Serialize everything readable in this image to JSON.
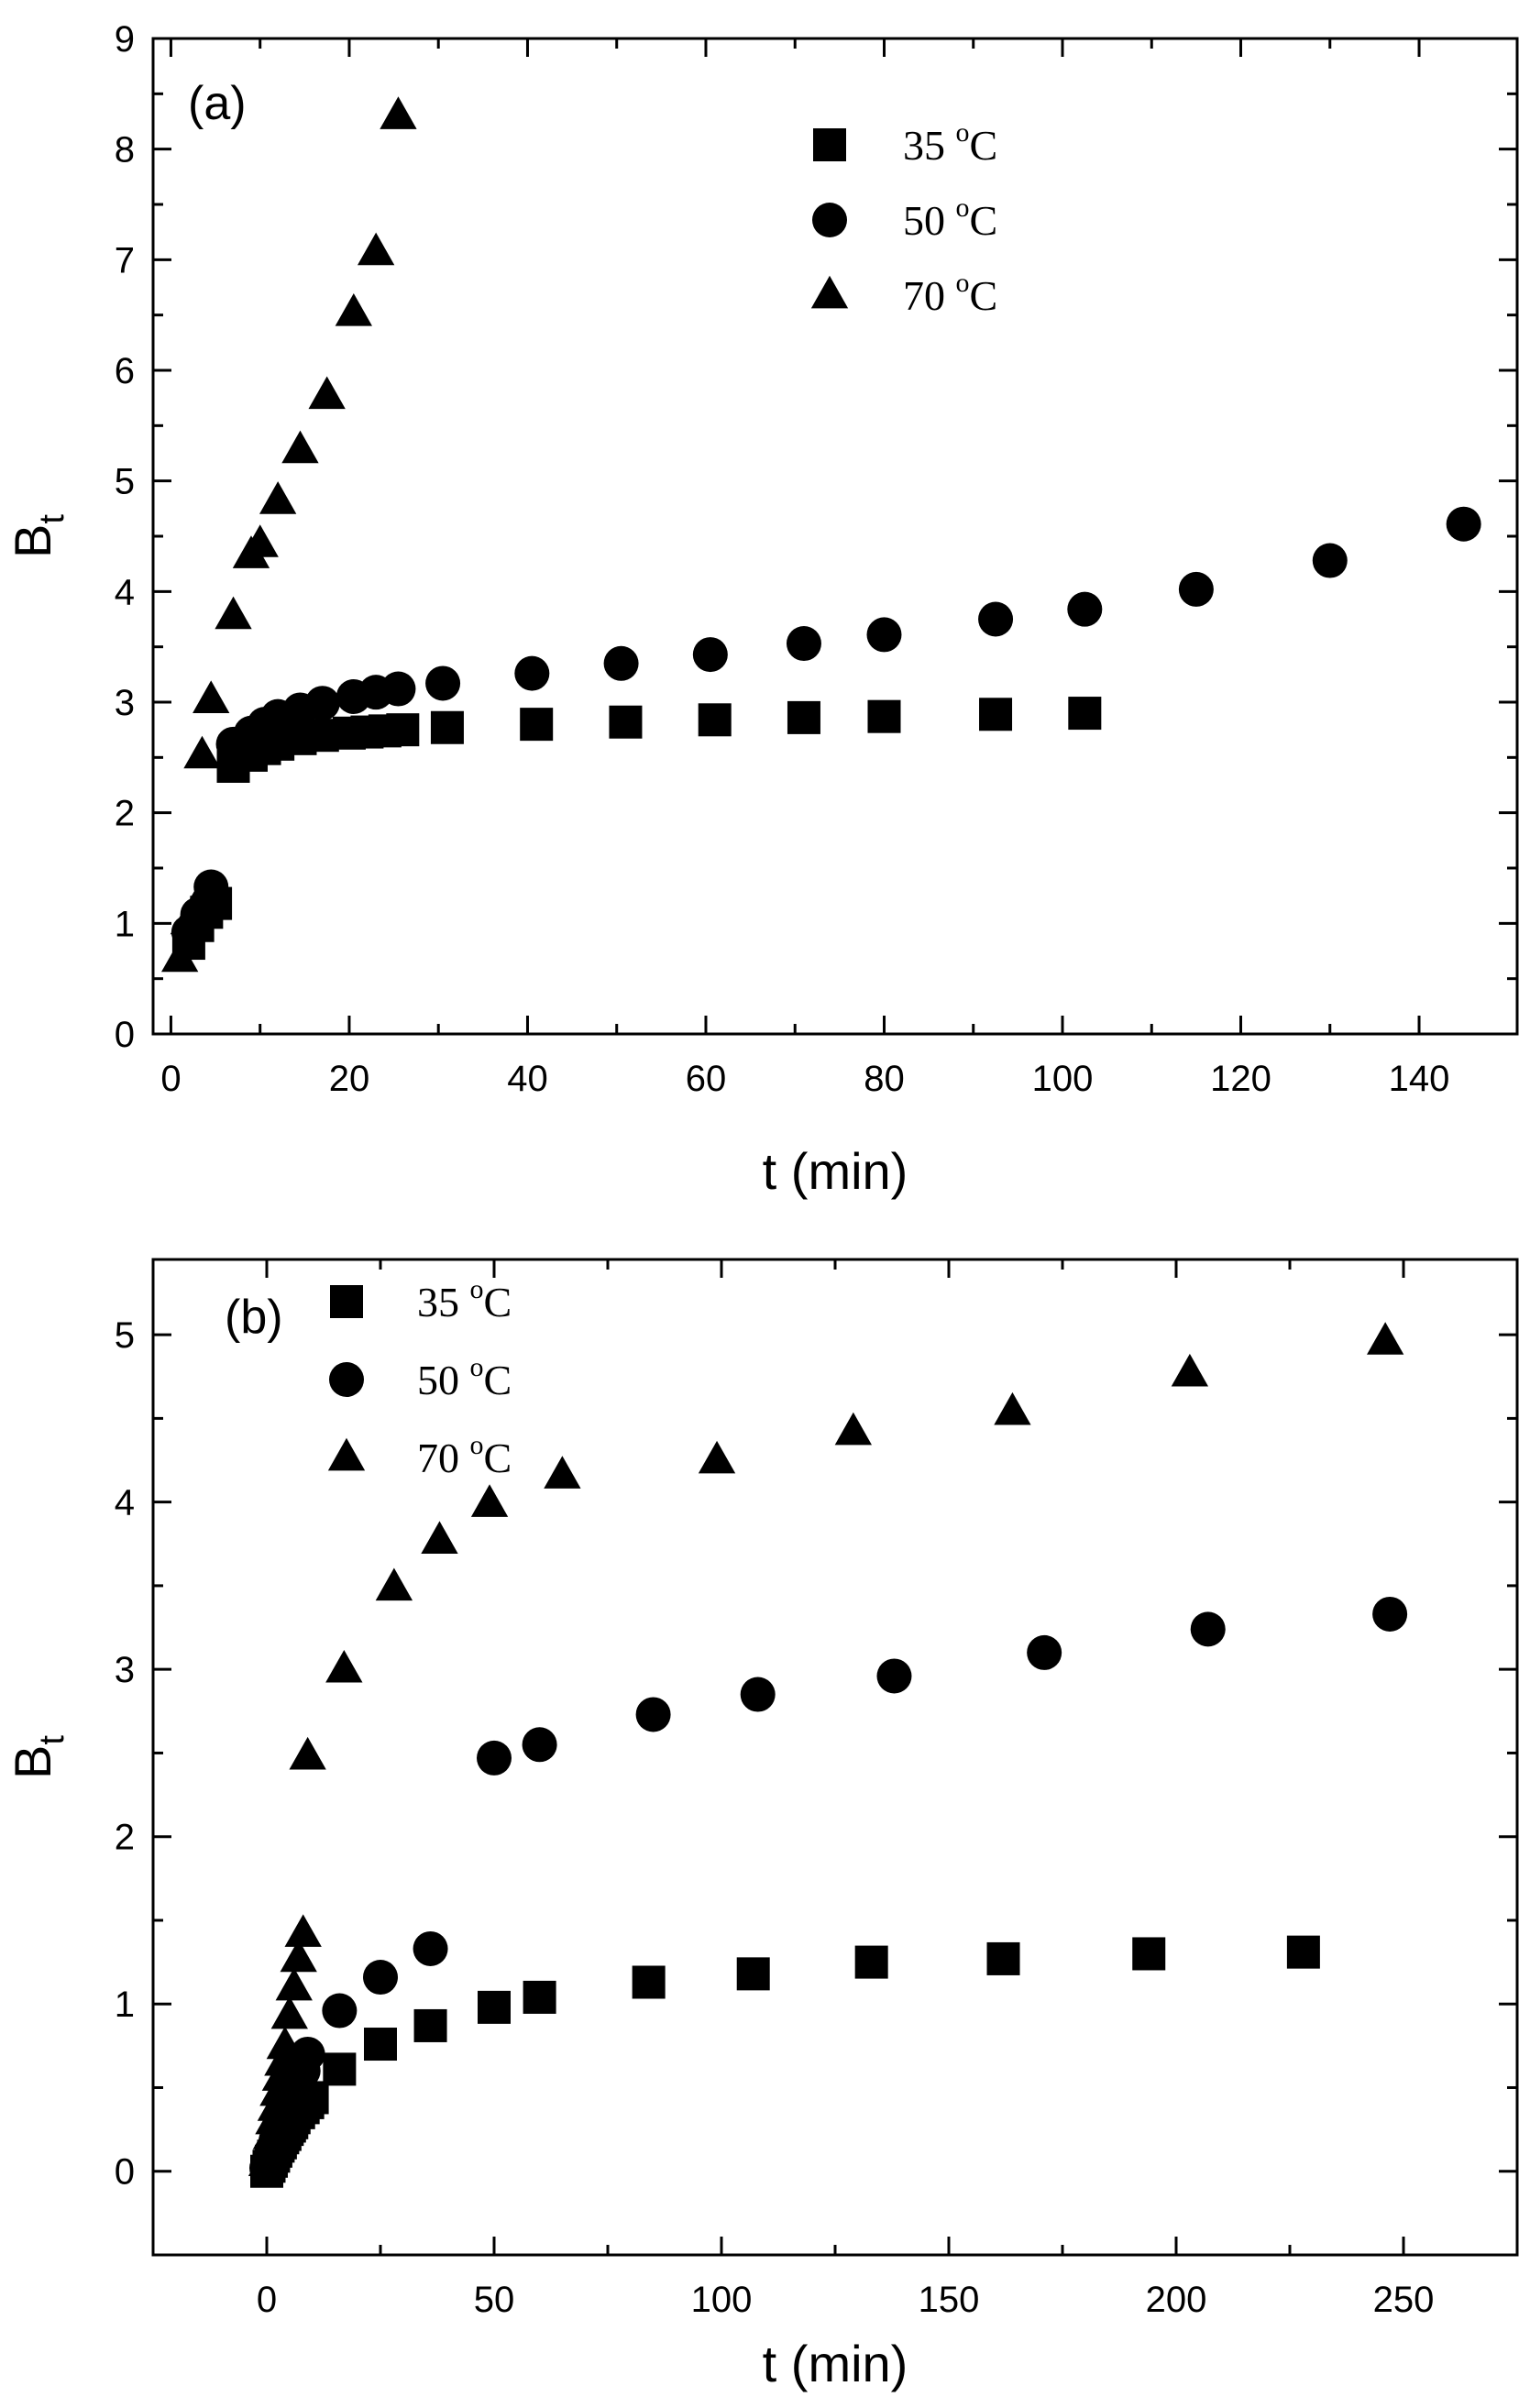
{
  "chart_data": [
    {
      "type": "scatter",
      "panel_label": "(a)",
      "xlabel": "t (min)",
      "ylabel_main": "B",
      "ylabel_sub": "t",
      "xlim": [
        -2,
        151
      ],
      "ylim": [
        0,
        9
      ],
      "xticks": [
        0,
        20,
        40,
        60,
        80,
        100,
        120,
        140
      ],
      "yticks": [
        0,
        1,
        2,
        3,
        4,
        5,
        6,
        7,
        8,
        9
      ],
      "legend_position": "top-center",
      "series": [
        {
          "name": "35 °C",
          "legend_text": "35 ",
          "legend_sup": "o",
          "legend_unit": "C",
          "marker": "square",
          "x": [
            2,
            3,
            4,
            5,
            7,
            9,
            10.5,
            12,
            14.5,
            17,
            20,
            22,
            24,
            26,
            31,
            41,
            51,
            61,
            71,
            80,
            92.5,
            102.5
          ],
          "y": [
            0.82,
            0.98,
            1.1,
            1.18,
            2.42,
            2.52,
            2.58,
            2.62,
            2.67,
            2.7,
            2.72,
            2.73,
            2.74,
            2.75,
            2.77,
            2.8,
            2.82,
            2.84,
            2.86,
            2.87,
            2.89,
            2.9
          ]
        },
        {
          "name": "50 °C",
          "legend_text": "50 ",
          "legend_sup": "o",
          "legend_unit": "C",
          "marker": "circle",
          "x": [
            2,
            3,
            4.5,
            7,
            9,
            10.5,
            12,
            14.5,
            17,
            20.5,
            23,
            25.5,
            30.5,
            40.5,
            50.5,
            60.5,
            71,
            80,
            92.5,
            102.5,
            115,
            130,
            145
          ],
          "y": [
            0.92,
            1.08,
            1.33,
            2.62,
            2.72,
            2.8,
            2.87,
            2.93,
            2.99,
            3.05,
            3.09,
            3.12,
            3.17,
            3.26,
            3.35,
            3.43,
            3.53,
            3.61,
            3.75,
            3.84,
            4.02,
            4.28,
            4.61
          ]
        },
        {
          "name": "70 °C",
          "legend_text": "70 ",
          "legend_sup": "o",
          "legend_unit": "C",
          "marker": "triangle",
          "x": [
            1,
            2,
            3,
            3.5,
            4.5,
            7,
            9,
            10,
            12,
            14.5,
            17.5,
            20.5,
            23,
            25.5
          ],
          "y": [
            0.68,
            1.02,
            1.17,
            2.52,
            3.02,
            3.78,
            4.33,
            4.43,
            4.82,
            5.28,
            5.77,
            6.52,
            7.07,
            8.3
          ]
        }
      ]
    },
    {
      "type": "scatter",
      "panel_label": "(b)",
      "xlabel": "t (min)",
      "ylabel_main": "B",
      "ylabel_sub": "t",
      "xlim": [
        -25,
        275
      ],
      "ylim": [
        -0.5,
        5.45
      ],
      "xticks": [
        0,
        50,
        100,
        150,
        200,
        250
      ],
      "yticks": [
        0,
        1,
        2,
        3,
        4,
        5
      ],
      "legend_position": "top-left",
      "series": [
        {
          "name": "35 °C",
          "legend_text": "35 ",
          "legend_sup": "o",
          "legend_unit": "C",
          "marker": "square",
          "x": [
            0,
            0.5,
            1,
            1.5,
            2,
            2.5,
            3,
            3.5,
            4,
            4.5,
            5,
            5.5,
            6,
            7,
            8,
            9,
            10,
            16,
            25,
            36,
            50,
            60,
            84,
            107,
            133,
            162,
            194,
            228
          ],
          "y": [
            0,
            0.03,
            0.06,
            0.09,
            0.12,
            0.15,
            0.17,
            0.2,
            0.22,
            0.25,
            0.27,
            0.29,
            0.32,
            0.35,
            0.38,
            0.41,
            0.44,
            0.61,
            0.76,
            0.87,
            0.98,
            1.04,
            1.13,
            1.18,
            1.25,
            1.27,
            1.3,
            1.31
          ]
        },
        {
          "name": "50 °C",
          "legend_text": "50 ",
          "legend_sup": "o",
          "legend_unit": "C",
          "marker": "circle",
          "x": [
            0,
            1,
            2,
            3,
            4,
            5,
            6,
            7,
            8,
            9,
            16,
            25,
            36,
            50,
            60,
            85,
            108,
            138,
            171,
            207,
            247
          ],
          "y": [
            0.02,
            0.1,
            0.18,
            0.26,
            0.33,
            0.4,
            0.47,
            0.54,
            0.6,
            0.7,
            0.96,
            1.16,
            1.33,
            2.47,
            2.55,
            2.73,
            2.85,
            2.96,
            3.1,
            3.24,
            3.33
          ]
        },
        {
          "name": "70 °C",
          "legend_text": "70 ",
          "legend_sup": "o",
          "legend_unit": "C",
          "marker": "triangle",
          "x": [
            0,
            0.5,
            1,
            1.5,
            2,
            2.5,
            3,
            3.5,
            4,
            5,
            6,
            7,
            8,
            9,
            17,
            28,
            38,
            49,
            65,
            99,
            129,
            164,
            203,
            246
          ],
          "y": [
            0.05,
            0.13,
            0.21,
            0.3,
            0.38,
            0.47,
            0.56,
            0.65,
            0.75,
            0.93,
            1.1,
            1.27,
            1.42,
            2.48,
            3.0,
            3.49,
            3.77,
            3.99,
            4.16,
            4.25,
            4.42,
            4.54,
            4.77,
            4.96
          ]
        }
      ]
    }
  ]
}
